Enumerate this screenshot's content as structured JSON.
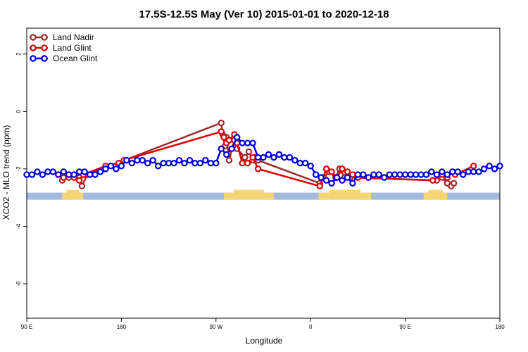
{
  "chart_data": {
    "type": "line",
    "title": "17.5S-12.5S May (Ver 10)   2015-01-01 to 2020-12-18",
    "xlabel": "Longitude",
    "ylabel": "XCO2 - MLO trend (ppm)",
    "xlim": [
      90,
      450
    ],
    "ylim": [
      -7.2,
      2.9
    ],
    "x_ticks": [
      {
        "value": 90,
        "label": "90 E"
      },
      {
        "value": 162,
        "label": "180"
      },
      {
        "value": 234,
        "label": "90 W"
      },
      {
        "value": 306,
        "label": "0"
      },
      {
        "value": 378,
        "label": "90 E"
      },
      {
        "value": 450,
        "label": "180"
      }
    ],
    "y_ticks": [
      {
        "value": 2,
        "label": "2"
      },
      {
        "value": 0,
        "label": "0"
      },
      {
        "value": -2,
        "label": "-2"
      },
      {
        "value": -4,
        "label": "-4"
      },
      {
        "value": -6,
        "label": "-6"
      }
    ],
    "grid": false,
    "legend_position": "top-left",
    "land_mask": {
      "y": -2.95,
      "ocean_color": "#a3b9e0",
      "land_color": "#f7d572",
      "land_segments": [
        [
          117,
          133
        ],
        [
          240,
          278
        ],
        [
          312,
          352
        ],
        [
          392,
          410
        ]
      ]
    },
    "series": [
      {
        "name": "Land Nadir",
        "color": "#9b2b2b",
        "x": [
          117,
          122,
          126,
          130,
          132,
          136,
          238,
          239,
          241,
          242,
          244,
          248,
          250,
          256,
          259,
          262,
          264,
          266,
          313,
          316,
          320,
          325,
          328,
          332,
          336,
          402,
          406,
          410,
          413,
          415
        ],
        "y": [
          -2.4,
          -2.3,
          -2.2,
          -2.3,
          -2.6,
          -2.2,
          -0.4,
          -0.8,
          -1.2,
          -0.9,
          -1.7,
          -1.0,
          -1.3,
          -1.6,
          -1.4,
          -1.7,
          -1.6,
          -1.7,
          -2.5,
          -2.3,
          -2.1,
          -2.3,
          -2.0,
          -2.3,
          -2.3,
          -2.4,
          -2.3,
          -2.5,
          -2.6,
          -2.5
        ]
      },
      {
        "name": "Land Glint",
        "color": "#e00000",
        "x": [
          118,
          122,
          126,
          130,
          133,
          150,
          160,
          164,
          238,
          240,
          242,
          244,
          248,
          250,
          254,
          258,
          262,
          266,
          313,
          318,
          322,
          326,
          330,
          334,
          336,
          338,
          342,
          399,
          406,
          410,
          414,
          416,
          430
        ],
        "y": [
          -2.3,
          -2.2,
          -2.3,
          -2.4,
          -2.2,
          -1.9,
          -1.8,
          -1.7,
          -0.7,
          -0.9,
          -1.1,
          -1.0,
          -0.8,
          -1.1,
          -1.8,
          -1.8,
          -1.6,
          -2.0,
          -2.6,
          -2.0,
          -2.1,
          -2.3,
          -2.0,
          -2.1,
          -2.3,
          -2.2,
          -2.3,
          -2.4,
          -2.2,
          -2.3,
          -2.1,
          -2.2,
          -1.9
        ]
      },
      {
        "name": "Ocean Glint",
        "color": "#0000e6",
        "x": [
          90,
          94,
          98,
          102,
          106,
          110,
          114,
          118,
          122,
          126,
          130,
          134,
          138,
          142,
          146,
          150,
          154,
          158,
          162,
          166,
          170,
          174,
          178,
          182,
          186,
          190,
          194,
          198,
          202,
          206,
          210,
          214,
          218,
          222,
          226,
          230,
          234,
          238,
          242,
          246,
          250,
          254,
          258,
          262,
          266,
          270,
          274,
          278,
          282,
          286,
          290,
          294,
          298,
          302,
          306,
          310,
          314,
          318,
          322,
          326,
          330,
          334,
          338,
          342,
          346,
          350,
          354,
          358,
          362,
          366,
          370,
          374,
          378,
          382,
          386,
          390,
          394,
          398,
          402,
          406,
          410,
          414,
          418,
          422,
          426,
          430,
          434,
          438,
          442,
          446,
          450
        ],
        "y": [
          -2.2,
          -2.2,
          -2.1,
          -2.2,
          -2.1,
          -2.1,
          -2.2,
          -2.1,
          -2.2,
          -2.2,
          -2.1,
          -2.1,
          -2.2,
          -2.2,
          -2.1,
          -2.0,
          -1.9,
          -2.0,
          -1.9,
          -1.7,
          -1.8,
          -1.7,
          -1.7,
          -1.8,
          -1.7,
          -1.9,
          -1.8,
          -1.8,
          -1.8,
          -1.7,
          -1.8,
          -1.7,
          -1.8,
          -1.8,
          -1.7,
          -1.8,
          -1.8,
          -1.3,
          -1.5,
          -1.3,
          -0.9,
          -1.1,
          -1.1,
          -1.1,
          -1.6,
          -1.6,
          -1.5,
          -1.6,
          -1.5,
          -1.6,
          -1.6,
          -1.7,
          -1.8,
          -1.8,
          -1.9,
          -2.2,
          -2.3,
          -2.4,
          -2.5,
          -2.3,
          -2.4,
          -2.3,
          -2.5,
          -2.2,
          -2.2,
          -2.3,
          -2.2,
          -2.2,
          -2.3,
          -2.2,
          -2.2,
          -2.2,
          -2.2,
          -2.2,
          -2.2,
          -2.2,
          -2.2,
          -2.1,
          -2.2,
          -2.1,
          -2.2,
          -2.1,
          -2.1,
          -2.2,
          -2.1,
          -2.1,
          -2.1,
          -2.0,
          -1.9,
          -2.0,
          -1.9
        ]
      }
    ]
  }
}
